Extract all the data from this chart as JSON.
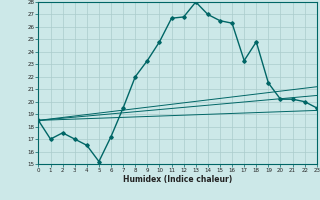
{
  "xlabel": "Humidex (Indice chaleur)",
  "bg_color": "#cce8e8",
  "grid_color": "#aacccc",
  "line_color": "#006666",
  "xlim": [
    0,
    23
  ],
  "ylim": [
    15,
    28
  ],
  "yticks": [
    15,
    16,
    17,
    18,
    19,
    20,
    21,
    22,
    23,
    24,
    25,
    26,
    27,
    28
  ],
  "xticks": [
    0,
    1,
    2,
    3,
    4,
    5,
    6,
    7,
    8,
    9,
    10,
    11,
    12,
    13,
    14,
    15,
    16,
    17,
    18,
    19,
    20,
    21,
    22,
    23
  ],
  "main_line_x": [
    0,
    1,
    2,
    3,
    4,
    5,
    6,
    7,
    8,
    9,
    10,
    11,
    12,
    13,
    14,
    15,
    16,
    17,
    18,
    19,
    20,
    21,
    22,
    23
  ],
  "main_line_y": [
    18.5,
    17.0,
    17.5,
    17.0,
    16.5,
    15.2,
    17.2,
    19.5,
    22.0,
    23.3,
    24.8,
    26.7,
    26.8,
    28.0,
    27.0,
    26.5,
    26.3,
    23.3,
    24.8,
    21.5,
    20.2,
    20.2,
    20.0,
    19.5
  ],
  "line2_x": [
    0,
    23
  ],
  "line2_y": [
    18.5,
    19.3
  ],
  "line3_x": [
    0,
    23
  ],
  "line3_y": [
    18.5,
    20.5
  ],
  "line4_x": [
    0,
    23
  ],
  "line4_y": [
    18.5,
    21.2
  ]
}
